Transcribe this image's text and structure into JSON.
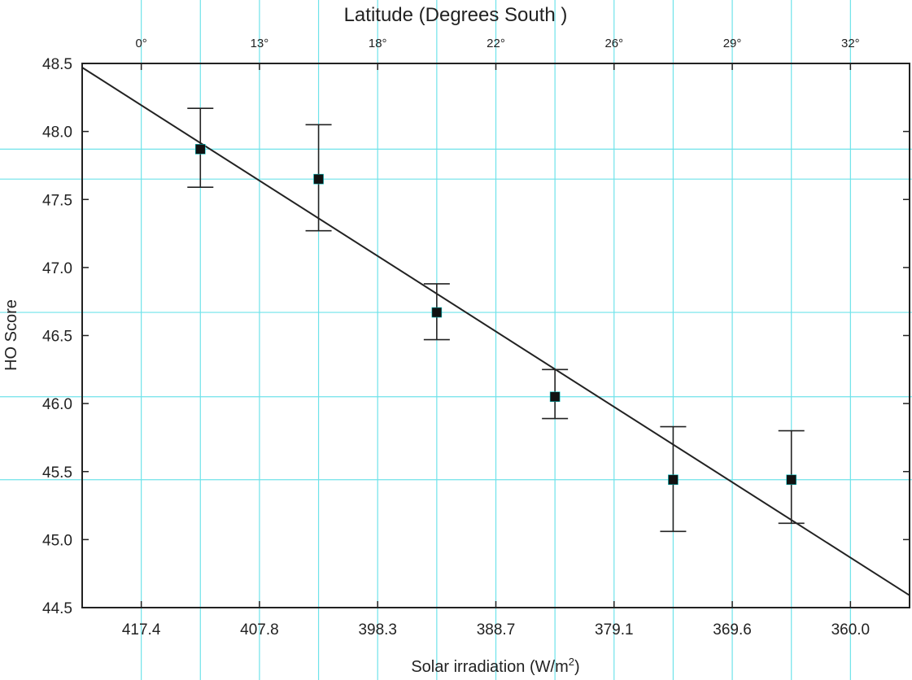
{
  "chart_data": {
    "type": "scatter",
    "title": "Latitude (Degrees South )",
    "xlabel": "Solar irradiation (W/m",
    "xlabel_superscript": "2",
    "xlabel_suffix": ")",
    "ylabel": "HO Score",
    "ylim": [
      44.5,
      48.5
    ],
    "xlim": [
      0,
      7
    ],
    "y_ticks": [
      "44.5",
      "45.0",
      "45.5",
      "46.0",
      "46.5",
      "47.0",
      "47.5",
      "48.0",
      "48.5"
    ],
    "x_ticks": [
      {
        "pos": 0.5,
        "label": "417.4"
      },
      {
        "pos": 1.5,
        "label": "407.8"
      },
      {
        "pos": 2.5,
        "label": "398.3"
      },
      {
        "pos": 3.5,
        "label": "388.7"
      },
      {
        "pos": 4.5,
        "label": "379.1"
      },
      {
        "pos": 5.5,
        "label": "369.6"
      },
      {
        "pos": 6.5,
        "label": "360.0"
      }
    ],
    "top_ticks": [
      {
        "pos": 0.5,
        "label": "0°"
      },
      {
        "pos": 1.5,
        "label": "13°"
      },
      {
        "pos": 2.5,
        "label": "18°"
      },
      {
        "pos": 3.5,
        "label": "22°"
      },
      {
        "pos": 4.5,
        "label": "26°"
      },
      {
        "pos": 5.5,
        "label": "29°"
      },
      {
        "pos": 6.5,
        "label": "32°"
      }
    ],
    "series": [
      {
        "points": [
          {
            "x": 1.0,
            "y": 47.87,
            "lo": 47.59,
            "hi": 48.17
          },
          {
            "x": 2.0,
            "y": 47.65,
            "lo": 47.27,
            "hi": 48.05
          },
          {
            "x": 3.0,
            "y": 46.67,
            "lo": 46.47,
            "hi": 46.88
          },
          {
            "x": 4.0,
            "y": 46.05,
            "lo": 45.89,
            "hi": 46.25
          },
          {
            "x": 5.0,
            "y": 45.44,
            "lo": 45.06,
            "hi": 45.83
          },
          {
            "x": 6.0,
            "y": 45.44,
            "lo": 45.12,
            "hi": 45.8
          }
        ]
      }
    ],
    "fit_line": {
      "x": [
        0,
        7
      ],
      "y": [
        48.47,
        44.59
      ]
    },
    "grid": false,
    "guide_lines_color": "#6fe3ea"
  }
}
